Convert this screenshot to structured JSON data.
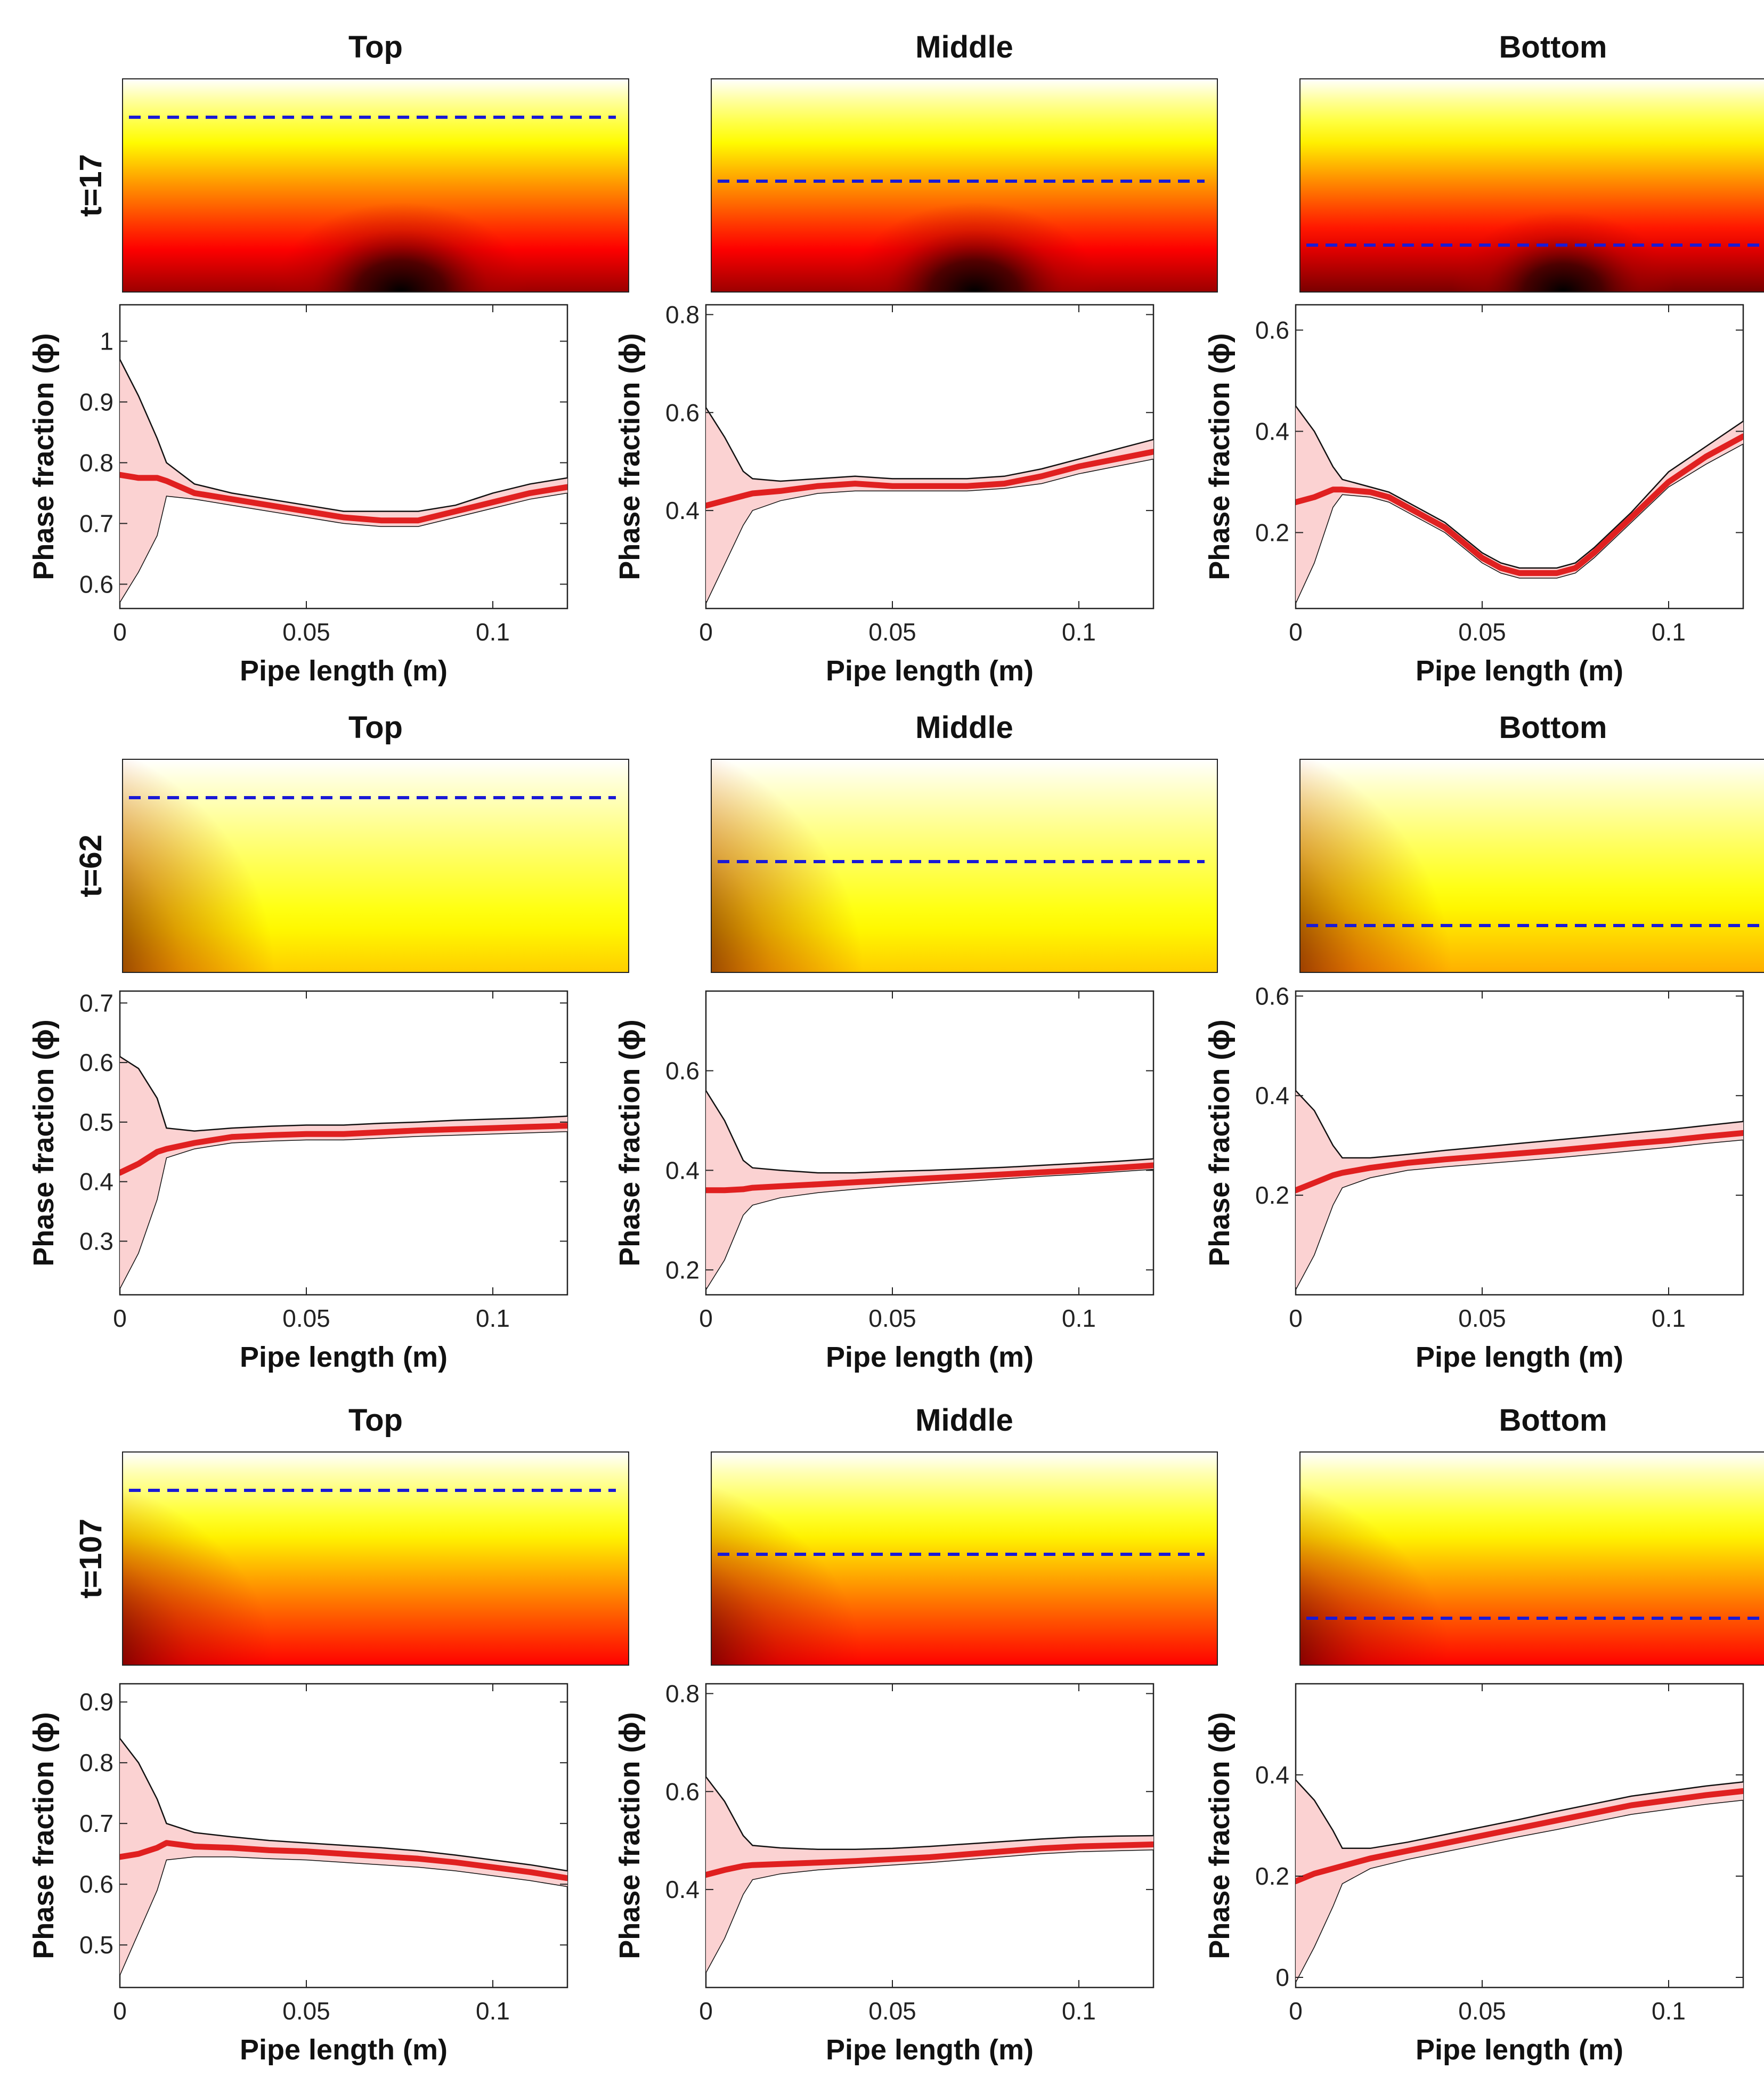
{
  "figure": {
    "row_labels": [
      "t=17",
      "t=62",
      "t=107"
    ],
    "column_titles": [
      "Top",
      "Middle",
      "Bottom"
    ],
    "xlabel": "Pipe length (m)",
    "ylabel": "Phase fraction (ϕ)"
  },
  "colors": {
    "mean_line": "#e02020",
    "band_fill": "#fbd2d2",
    "band_edge": "#111111",
    "probe_line": "#1a1ad6",
    "heatmap_colormap": "hot"
  },
  "chart_data": [
    {
      "type": "line",
      "row": 0,
      "col": 0,
      "title": "Top",
      "row_label": "t=17",
      "xlabel": "Pipe length (m)",
      "ylabel": "Phase fraction (ϕ)",
      "xlim": [
        0,
        0.12
      ],
      "ylim": [
        0.56,
        1.06
      ],
      "xticks": [
        0,
        0.05,
        0.1
      ],
      "yticks": [
        0.6,
        0.7,
        0.8,
        0.9,
        1
      ],
      "x": [
        0,
        0.005,
        0.01,
        0.0125,
        0.02,
        0.03,
        0.04,
        0.05,
        0.06,
        0.07,
        0.08,
        0.09,
        0.1,
        0.11,
        0.12
      ],
      "series": [
        {
          "values": [
            0.78,
            0.775,
            0.775,
            0.77,
            0.75,
            0.74,
            0.73,
            0.72,
            0.71,
            0.705,
            0.705,
            0.72,
            0.735,
            0.75,
            0.76
          ]
        }
      ],
      "band_upper": [
        0.97,
        0.91,
        0.84,
        0.8,
        0.765,
        0.75,
        0.74,
        0.73,
        0.72,
        0.72,
        0.72,
        0.73,
        0.75,
        0.765,
        0.775
      ],
      "band_lower": [
        0.57,
        0.62,
        0.68,
        0.745,
        0.74,
        0.73,
        0.72,
        0.71,
        0.7,
        0.695,
        0.695,
        0.71,
        0.725,
        0.74,
        0.75
      ],
      "heatmap": {
        "probe_level": 0.82,
        "dark_center": 0.55,
        "dark_radius_x": 0.25,
        "dark_radius_y": 0.42,
        "base_value": 0.35,
        "shade": 1.0
      }
    },
    {
      "type": "line",
      "row": 0,
      "col": 1,
      "title": "Middle",
      "row_label": "t=17",
      "xlabel": "Pipe length (m)",
      "ylabel": "Phase fraction (ϕ)",
      "xlim": [
        0,
        0.12
      ],
      "ylim": [
        0.2,
        0.82
      ],
      "xticks": [
        0,
        0.05,
        0.1
      ],
      "yticks": [
        0.4,
        0.6,
        0.8
      ],
      "x": [
        0,
        0.005,
        0.01,
        0.0125,
        0.02,
        0.03,
        0.04,
        0.05,
        0.06,
        0.07,
        0.08,
        0.09,
        0.1,
        0.11,
        0.12
      ],
      "series": [
        {
          "values": [
            0.41,
            0.42,
            0.43,
            0.435,
            0.44,
            0.45,
            0.455,
            0.45,
            0.45,
            0.45,
            0.455,
            0.47,
            0.49,
            0.505,
            0.52
          ]
        }
      ],
      "band_upper": [
        0.61,
        0.55,
        0.48,
        0.465,
        0.46,
        0.465,
        0.47,
        0.465,
        0.465,
        0.465,
        0.47,
        0.485,
        0.505,
        0.525,
        0.545
      ],
      "band_lower": [
        0.21,
        0.29,
        0.37,
        0.4,
        0.42,
        0.435,
        0.44,
        0.44,
        0.44,
        0.44,
        0.445,
        0.455,
        0.475,
        0.49,
        0.505
      ],
      "heatmap": {
        "probe_level": 0.52,
        "dark_center": 0.52,
        "dark_radius_x": 0.25,
        "dark_radius_y": 0.42,
        "base_value": 0.35,
        "shade": 1.0
      }
    },
    {
      "type": "line",
      "row": 0,
      "col": 2,
      "title": "Bottom",
      "row_label": "t=17",
      "xlabel": "Pipe length (m)",
      "ylabel": "Phase fraction (ϕ)",
      "xlim": [
        0,
        0.12
      ],
      "ylim": [
        0.05,
        0.65
      ],
      "xticks": [
        0,
        0.05,
        0.1
      ],
      "yticks": [
        0.2,
        0.4,
        0.6
      ],
      "x": [
        0,
        0.005,
        0.01,
        0.0125,
        0.02,
        0.025,
        0.03,
        0.04,
        0.05,
        0.055,
        0.06,
        0.065,
        0.07,
        0.075,
        0.08,
        0.09,
        0.1,
        0.11,
        0.12
      ],
      "series": [
        {
          "values": [
            0.26,
            0.27,
            0.285,
            0.285,
            0.28,
            0.27,
            0.25,
            0.21,
            0.15,
            0.13,
            0.12,
            0.12,
            0.12,
            0.13,
            0.16,
            0.23,
            0.3,
            0.35,
            0.39
          ]
        }
      ],
      "band_upper": [
        0.45,
        0.4,
        0.33,
        0.305,
        0.29,
        0.28,
        0.26,
        0.22,
        0.16,
        0.14,
        0.13,
        0.13,
        0.13,
        0.14,
        0.17,
        0.24,
        0.32,
        0.37,
        0.42
      ],
      "band_lower": [
        0.06,
        0.14,
        0.25,
        0.275,
        0.27,
        0.26,
        0.24,
        0.2,
        0.14,
        0.12,
        0.11,
        0.11,
        0.11,
        0.12,
        0.15,
        0.22,
        0.29,
        0.335,
        0.375
      ],
      "heatmap": {
        "probe_level": 0.22,
        "dark_center": 0.52,
        "dark_radius_x": 0.22,
        "dark_radius_y": 0.38,
        "base_value": 0.3,
        "shade": 1.0
      }
    },
    {
      "type": "line",
      "row": 1,
      "col": 0,
      "title": "Top",
      "row_label": "t=62",
      "xlabel": "Pipe length (m)",
      "ylabel": "Phase fraction (ϕ)",
      "xlim": [
        0,
        0.12
      ],
      "ylim": [
        0.21,
        0.72
      ],
      "xticks": [
        0,
        0.05,
        0.1
      ],
      "yticks": [
        0.3,
        0.4,
        0.5,
        0.6,
        0.7
      ],
      "x": [
        0,
        0.005,
        0.01,
        0.0125,
        0.02,
        0.03,
        0.04,
        0.05,
        0.06,
        0.07,
        0.08,
        0.09,
        0.1,
        0.11,
        0.12
      ],
      "series": [
        {
          "values": [
            0.415,
            0.43,
            0.45,
            0.455,
            0.465,
            0.475,
            0.478,
            0.48,
            0.48,
            0.483,
            0.486,
            0.488,
            0.49,
            0.492,
            0.494
          ]
        }
      ],
      "band_upper": [
        0.61,
        0.59,
        0.54,
        0.49,
        0.485,
        0.49,
        0.493,
        0.495,
        0.495,
        0.498,
        0.5,
        0.503,
        0.505,
        0.507,
        0.51
      ],
      "band_lower": [
        0.22,
        0.28,
        0.37,
        0.44,
        0.455,
        0.465,
        0.468,
        0.47,
        0.47,
        0.473,
        0.476,
        0.478,
        0.48,
        0.482,
        0.484
      ],
      "heatmap": {
        "probe_level": 0.82,
        "dark_center": -0.3,
        "dark_radius_x": 0.6,
        "dark_radius_y": 1.2,
        "base_value": 0.55,
        "shade": 0.45
      }
    },
    {
      "type": "line",
      "row": 1,
      "col": 1,
      "title": "Middle",
      "row_label": "t=62",
      "xlabel": "Pipe length (m)",
      "ylabel": "Phase fraction (ϕ)",
      "xlim": [
        0,
        0.12
      ],
      "ylim": [
        0.15,
        0.76
      ],
      "xticks": [
        0,
        0.05,
        0.1
      ],
      "yticks": [
        0.2,
        0.4,
        0.6
      ],
      "x": [
        0,
        0.005,
        0.01,
        0.0125,
        0.02,
        0.03,
        0.04,
        0.05,
        0.06,
        0.07,
        0.08,
        0.09,
        0.1,
        0.11,
        0.12
      ],
      "series": [
        {
          "values": [
            0.36,
            0.36,
            0.362,
            0.365,
            0.368,
            0.372,
            0.376,
            0.38,
            0.384,
            0.388,
            0.392,
            0.396,
            0.4,
            0.405,
            0.41
          ]
        }
      ],
      "band_upper": [
        0.56,
        0.5,
        0.42,
        0.405,
        0.4,
        0.395,
        0.395,
        0.398,
        0.4,
        0.403,
        0.406,
        0.41,
        0.414,
        0.418,
        0.423
      ],
      "band_lower": [
        0.16,
        0.22,
        0.31,
        0.33,
        0.345,
        0.355,
        0.362,
        0.368,
        0.373,
        0.378,
        0.383,
        0.388,
        0.392,
        0.397,
        0.402
      ],
      "heatmap": {
        "probe_level": 0.52,
        "dark_center": -0.3,
        "dark_radius_x": 0.6,
        "dark_radius_y": 1.2,
        "base_value": 0.55,
        "shade": 0.45
      }
    },
    {
      "type": "line",
      "row": 1,
      "col": 2,
      "title": "Bottom",
      "row_label": "t=62",
      "xlabel": "Pipe length (m)",
      "ylabel": "Phase fraction (ϕ)",
      "xlim": [
        0,
        0.12
      ],
      "ylim": [
        0.0,
        0.61
      ],
      "xticks": [
        0,
        0.05,
        0.1
      ],
      "yticks": [
        0.2,
        0.4,
        0.6
      ],
      "x": [
        0,
        0.005,
        0.01,
        0.0125,
        0.02,
        0.03,
        0.04,
        0.05,
        0.06,
        0.07,
        0.08,
        0.09,
        0.1,
        0.11,
        0.12
      ],
      "series": [
        {
          "values": [
            0.21,
            0.225,
            0.24,
            0.245,
            0.255,
            0.265,
            0.272,
            0.278,
            0.284,
            0.29,
            0.297,
            0.304,
            0.31,
            0.318,
            0.325
          ]
        }
      ],
      "band_upper": [
        0.41,
        0.37,
        0.3,
        0.275,
        0.275,
        0.282,
        0.29,
        0.297,
        0.304,
        0.311,
        0.318,
        0.325,
        0.332,
        0.34,
        0.348
      ],
      "band_lower": [
        0.01,
        0.08,
        0.18,
        0.215,
        0.235,
        0.25,
        0.257,
        0.263,
        0.269,
        0.275,
        0.282,
        0.289,
        0.296,
        0.304,
        0.311
      ],
      "heatmap": {
        "probe_level": 0.22,
        "dark_center": -0.3,
        "dark_radius_x": 0.6,
        "dark_radius_y": 1.2,
        "base_value": 0.55,
        "shade": 0.55
      }
    },
    {
      "type": "line",
      "row": 2,
      "col": 0,
      "title": "Top",
      "row_label": "t=107",
      "xlabel": "Pipe length (m)",
      "ylabel": "Phase fraction (ϕ)",
      "xlim": [
        0,
        0.12
      ],
      "ylim": [
        0.43,
        0.93
      ],
      "xticks": [
        0,
        0.05,
        0.1
      ],
      "yticks": [
        0.5,
        0.6,
        0.7,
        0.8,
        0.9
      ],
      "x": [
        0,
        0.005,
        0.01,
        0.0125,
        0.02,
        0.03,
        0.04,
        0.05,
        0.06,
        0.07,
        0.08,
        0.09,
        0.1,
        0.11,
        0.12
      ],
      "series": [
        {
          "values": [
            0.645,
            0.65,
            0.66,
            0.668,
            0.662,
            0.66,
            0.656,
            0.654,
            0.65,
            0.646,
            0.642,
            0.636,
            0.628,
            0.62,
            0.61
          ]
        }
      ],
      "band_upper": [
        0.84,
        0.8,
        0.74,
        0.7,
        0.685,
        0.678,
        0.672,
        0.668,
        0.664,
        0.66,
        0.655,
        0.648,
        0.64,
        0.632,
        0.622
      ],
      "band_lower": [
        0.45,
        0.52,
        0.59,
        0.64,
        0.645,
        0.645,
        0.642,
        0.64,
        0.636,
        0.632,
        0.628,
        0.622,
        0.614,
        0.606,
        0.596
      ],
      "heatmap": {
        "probe_level": 0.82,
        "dark_center": -0.25,
        "dark_radius_x": 0.55,
        "dark_radius_y": 0.95,
        "base_value": 0.28,
        "shade": 0.7
      }
    },
    {
      "type": "line",
      "row": 2,
      "col": 1,
      "title": "Middle",
      "row_label": "t=107",
      "xlabel": "Pipe length (m)",
      "ylabel": "Phase fraction (ϕ)",
      "xlim": [
        0,
        0.12
      ],
      "ylim": [
        0.2,
        0.82
      ],
      "xticks": [
        0,
        0.05,
        0.1
      ],
      "yticks": [
        0.4,
        0.6,
        0.8
      ],
      "x": [
        0,
        0.005,
        0.01,
        0.0125,
        0.02,
        0.03,
        0.04,
        0.05,
        0.06,
        0.07,
        0.08,
        0.09,
        0.1,
        0.11,
        0.12
      ],
      "series": [
        {
          "values": [
            0.43,
            0.44,
            0.448,
            0.45,
            0.452,
            0.455,
            0.458,
            0.462,
            0.466,
            0.472,
            0.478,
            0.484,
            0.488,
            0.49,
            0.492
          ]
        }
      ],
      "band_upper": [
        0.63,
        0.58,
        0.51,
        0.49,
        0.485,
        0.482,
        0.482,
        0.484,
        0.488,
        0.493,
        0.498,
        0.503,
        0.507,
        0.509,
        0.51
      ],
      "band_lower": [
        0.23,
        0.3,
        0.39,
        0.42,
        0.432,
        0.44,
        0.445,
        0.45,
        0.455,
        0.461,
        0.467,
        0.473,
        0.477,
        0.479,
        0.481
      ],
      "heatmap": {
        "probe_level": 0.52,
        "dark_center": -0.25,
        "dark_radius_x": 0.55,
        "dark_radius_y": 0.95,
        "base_value": 0.28,
        "shade": 0.7
      }
    },
    {
      "type": "line",
      "row": 2,
      "col": 2,
      "title": "Bottom",
      "row_label": "t=107",
      "xlabel": "Pipe length (m)",
      "ylabel": "Phase fraction (ϕ)",
      "xlim": [
        0,
        0.12
      ],
      "ylim": [
        -0.02,
        0.58
      ],
      "xticks": [
        0,
        0.05,
        0.1
      ],
      "yticks": [
        0,
        0.2,
        0.4
      ],
      "x": [
        0,
        0.005,
        0.01,
        0.0125,
        0.02,
        0.03,
        0.04,
        0.05,
        0.06,
        0.07,
        0.08,
        0.09,
        0.1,
        0.11,
        0.12
      ],
      "series": [
        {
          "values": [
            0.19,
            0.205,
            0.215,
            0.22,
            0.235,
            0.25,
            0.265,
            0.28,
            0.295,
            0.31,
            0.325,
            0.34,
            0.35,
            0.36,
            0.368
          ]
        }
      ],
      "band_upper": [
        0.39,
        0.35,
        0.29,
        0.255,
        0.255,
        0.267,
        0.282,
        0.297,
        0.312,
        0.328,
        0.343,
        0.358,
        0.368,
        0.378,
        0.386
      ],
      "band_lower": [
        -0.01,
        0.06,
        0.14,
        0.185,
        0.215,
        0.233,
        0.248,
        0.263,
        0.278,
        0.292,
        0.307,
        0.322,
        0.332,
        0.342,
        0.35
      ],
      "heatmap": {
        "probe_level": 0.22,
        "dark_center": -0.25,
        "dark_radius_x": 0.55,
        "dark_radius_y": 0.95,
        "base_value": 0.28,
        "shade": 0.7
      }
    }
  ]
}
